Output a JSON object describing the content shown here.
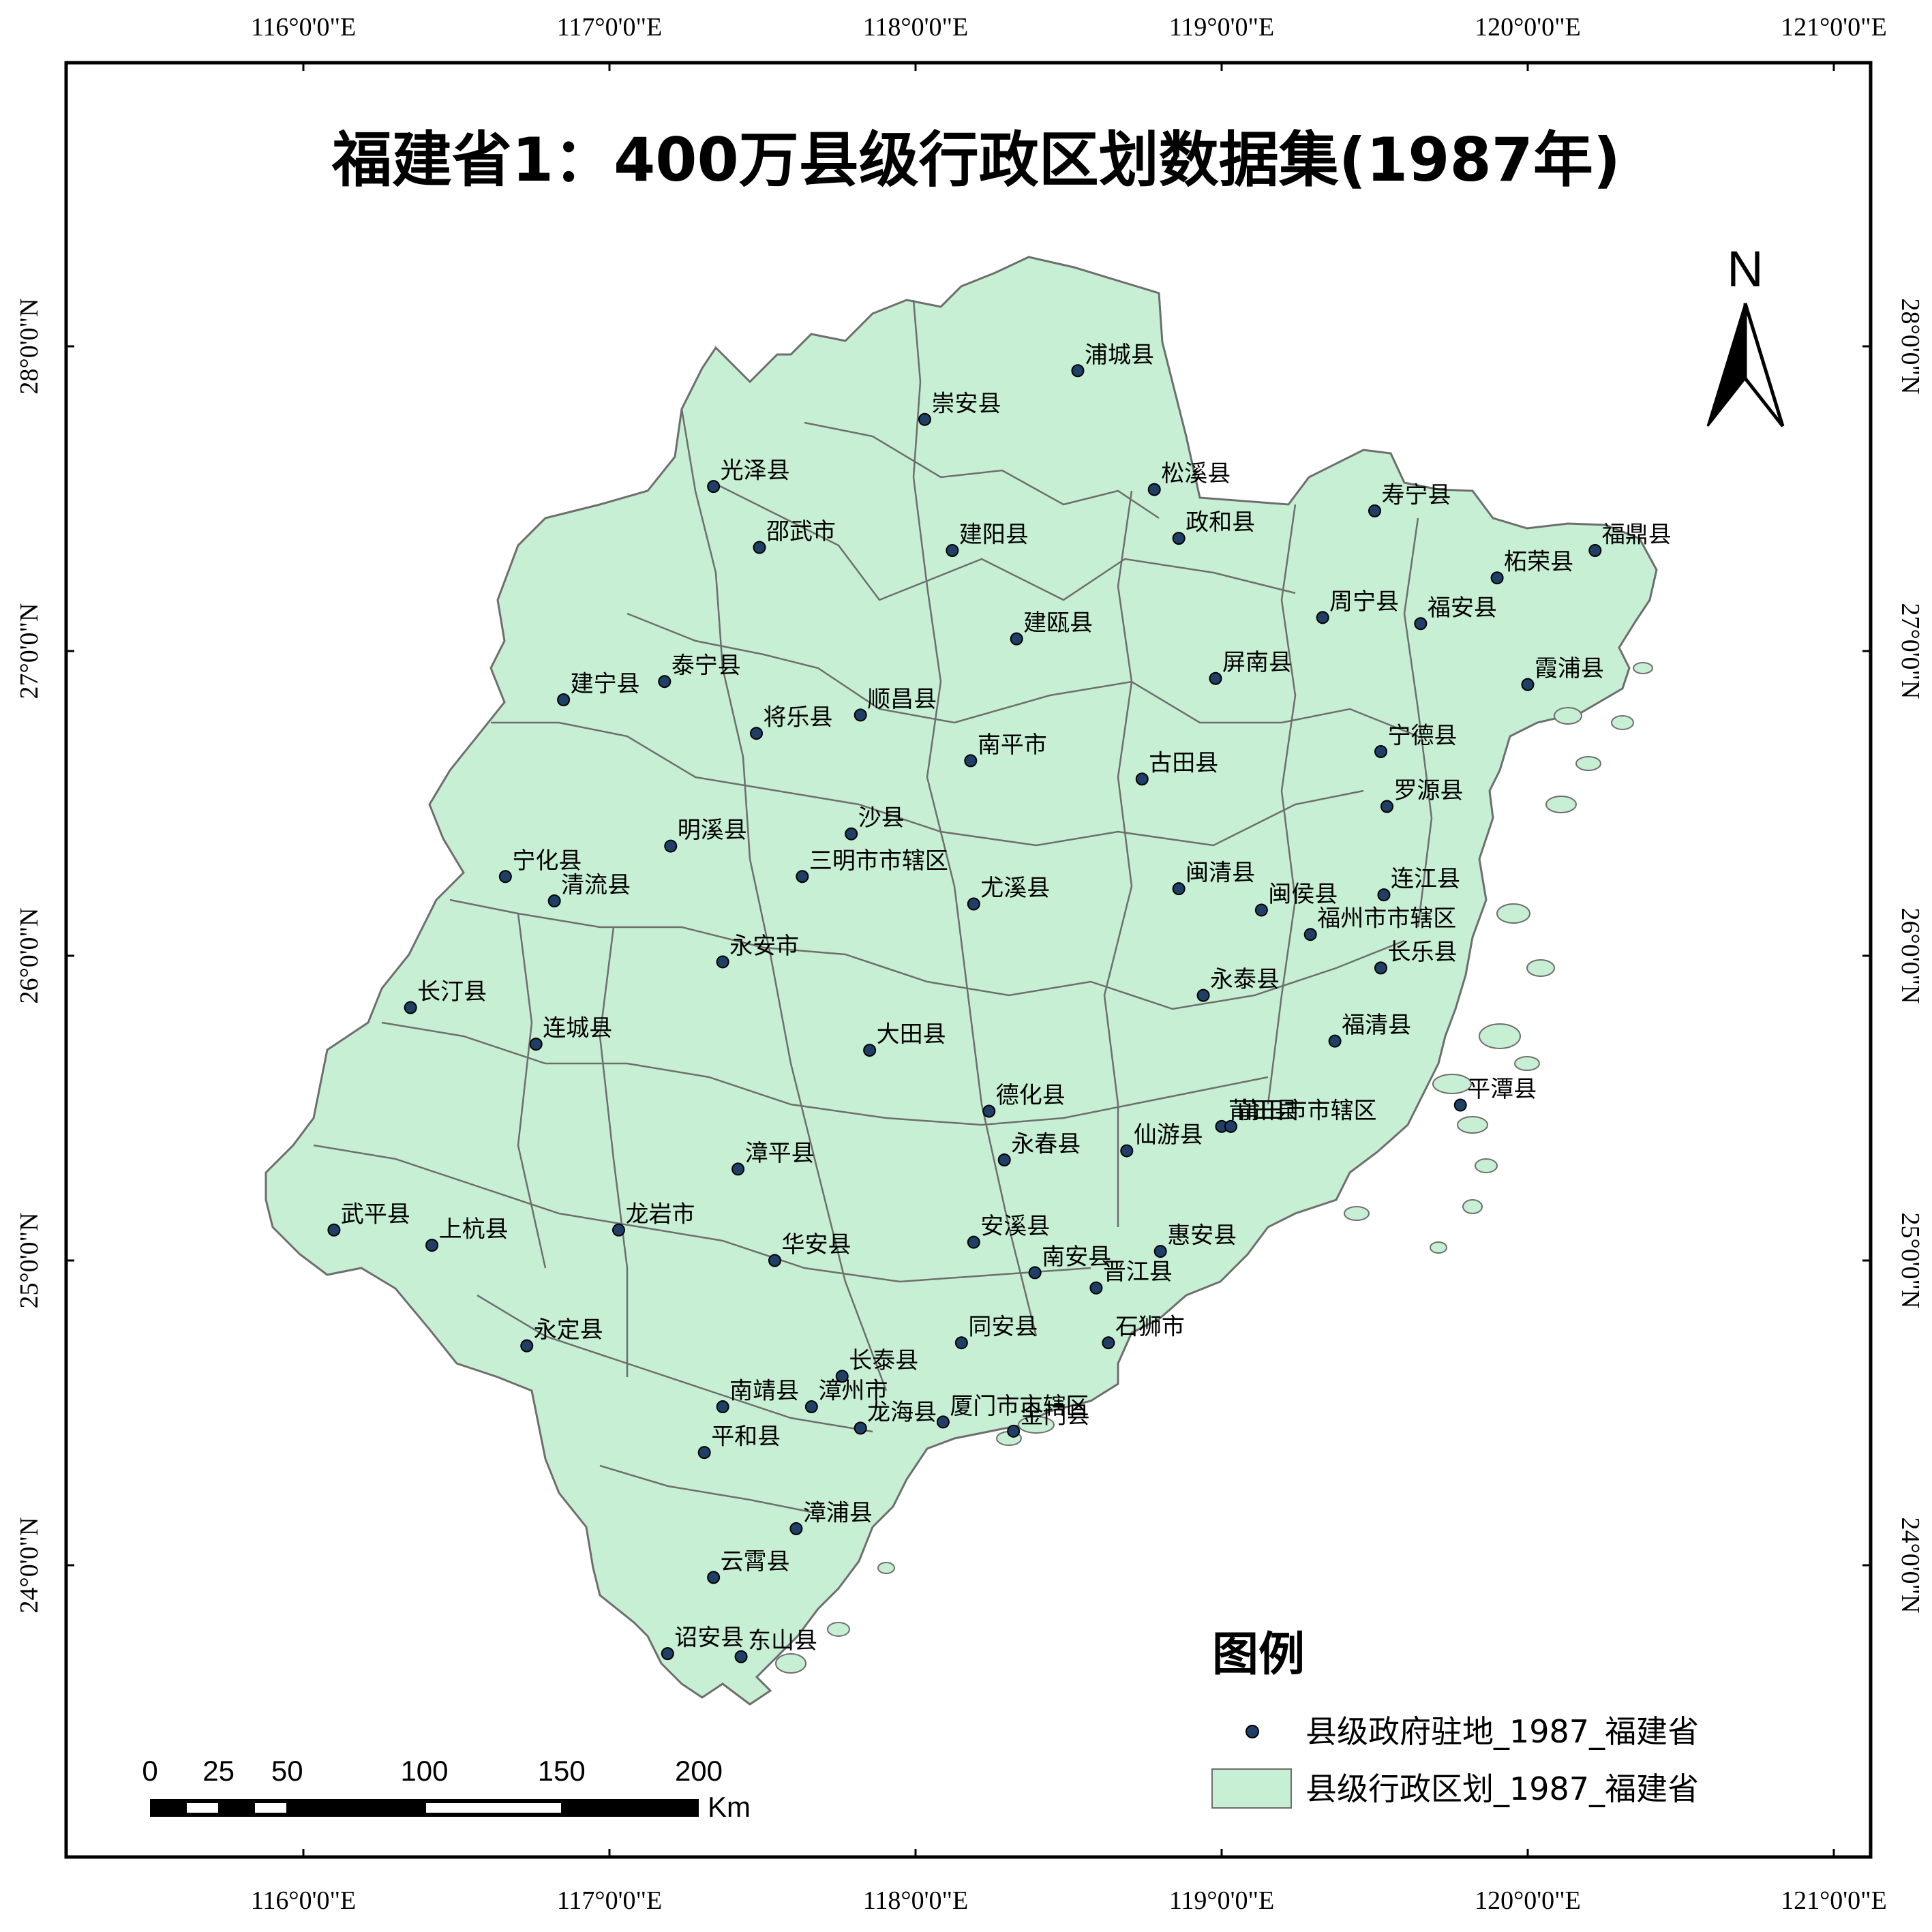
{
  "title": "福建省1：400万县级行政区划数据集(1987年)",
  "north_label": "N",
  "lon_ticks": [
    {
      "lon": 116,
      "label": "116°0'0\"E"
    },
    {
      "lon": 117,
      "label": "117°0'0\"E"
    },
    {
      "lon": 118,
      "label": "118°0'0\"E"
    },
    {
      "lon": 119,
      "label": "119°0'0\"E"
    },
    {
      "lon": 120,
      "label": "120°0'0\"E"
    },
    {
      "lon": 121,
      "label": "121°0'0\"E"
    }
  ],
  "lat_ticks": [
    {
      "lat": 28,
      "label": "28°0'0\"N"
    },
    {
      "lat": 27,
      "label": "27°0'0\"N"
    },
    {
      "lat": 26,
      "label": "26°0'0\"N"
    },
    {
      "lat": 25,
      "label": "25°0'0\"N"
    },
    {
      "lat": 24,
      "label": "24°0'0\"N"
    }
  ],
  "colors": {
    "land_fill": "#c7efd4",
    "boundary": "#6e6e6e",
    "point_fill": "#1f3f67",
    "frame": "#000000"
  },
  "legend": {
    "title": "图例",
    "items": [
      {
        "symbol": "point",
        "label": "县级政府驻地_1987_福建省"
      },
      {
        "symbol": "polygon",
        "label": "县级行政区划_1987_福建省"
      }
    ]
  },
  "scale_bar": {
    "unit": "Km",
    "labels": [
      "0",
      "25",
      "50",
      "100",
      "150",
      "200"
    ]
  },
  "counties": [
    {
      "name": "浦城县",
      "lon": 118.53,
      "lat": 27.92
    },
    {
      "name": "崇安县",
      "lon": 118.03,
      "lat": 27.76
    },
    {
      "name": "光泽县",
      "lon": 117.34,
      "lat": 27.54
    },
    {
      "name": "松溪县",
      "lon": 118.78,
      "lat": 27.53
    },
    {
      "name": "寿宁县",
      "lon": 119.5,
      "lat": 27.46
    },
    {
      "name": "邵武市",
      "lon": 117.49,
      "lat": 27.34
    },
    {
      "name": "建阳县",
      "lon": 118.12,
      "lat": 27.33
    },
    {
      "name": "政和县",
      "lon": 118.86,
      "lat": 27.37
    },
    {
      "name": "福鼎县",
      "lon": 120.22,
      "lat": 27.33
    },
    {
      "name": "柘荣县",
      "lon": 119.9,
      "lat": 27.24
    },
    {
      "name": "周宁县",
      "lon": 119.33,
      "lat": 27.11
    },
    {
      "name": "福安县",
      "lon": 119.65,
      "lat": 27.09
    },
    {
      "name": "建瓯县",
      "lon": 118.33,
      "lat": 27.04
    },
    {
      "name": "泰宁县",
      "lon": 117.18,
      "lat": 26.9
    },
    {
      "name": "建宁县",
      "lon": 116.85,
      "lat": 26.84
    },
    {
      "name": "屏南县",
      "lon": 118.98,
      "lat": 26.91
    },
    {
      "name": "霞浦县",
      "lon": 120.0,
      "lat": 26.89
    },
    {
      "name": "顺昌县",
      "lon": 117.82,
      "lat": 26.79
    },
    {
      "name": "将乐县",
      "lon": 117.48,
      "lat": 26.73
    },
    {
      "name": "南平市",
      "lon": 118.18,
      "lat": 26.64
    },
    {
      "name": "宁德县",
      "lon": 119.52,
      "lat": 26.67
    },
    {
      "name": "古田县",
      "lon": 118.74,
      "lat": 26.58
    },
    {
      "name": "罗源县",
      "lon": 119.54,
      "lat": 26.49
    },
    {
      "name": "沙县",
      "lon": 117.79,
      "lat": 26.4
    },
    {
      "name": "明溪县",
      "lon": 117.2,
      "lat": 26.36
    },
    {
      "name": "三明市市辖区",
      "lon": 117.63,
      "lat": 26.26
    },
    {
      "name": "宁化县",
      "lon": 116.66,
      "lat": 26.26
    },
    {
      "name": "清流县",
      "lon": 116.82,
      "lat": 26.18
    },
    {
      "name": "尤溪县",
      "lon": 118.19,
      "lat": 26.17
    },
    {
      "name": "闽清县",
      "lon": 118.86,
      "lat": 26.22
    },
    {
      "name": "闽侯县",
      "lon": 119.13,
      "lat": 26.15
    },
    {
      "name": "连江县",
      "lon": 119.53,
      "lat": 26.2
    },
    {
      "name": "福州市市辖区",
      "lon": 119.29,
      "lat": 26.07
    },
    {
      "name": "永安市",
      "lon": 117.37,
      "lat": 25.98
    },
    {
      "name": "长乐县",
      "lon": 119.52,
      "lat": 25.96
    },
    {
      "name": "永泰县",
      "lon": 118.94,
      "lat": 25.87
    },
    {
      "name": "长汀县",
      "lon": 116.35,
      "lat": 25.83
    },
    {
      "name": "连城县",
      "lon": 116.76,
      "lat": 25.71
    },
    {
      "name": "福清县",
      "lon": 119.37,
      "lat": 25.72
    },
    {
      "name": "大田县",
      "lon": 117.85,
      "lat": 25.69
    },
    {
      "name": "德化县",
      "lon": 118.24,
      "lat": 25.49
    },
    {
      "name": "平潭县",
      "lon": 119.78,
      "lat": 25.51
    },
    {
      "name": "莆田县",
      "lon": 119.0,
      "lat": 25.44
    },
    {
      "name": "莆田市市辖区",
      "lon": 119.03,
      "lat": 25.44
    },
    {
      "name": "仙游县",
      "lon": 118.69,
      "lat": 25.36
    },
    {
      "name": "永春县",
      "lon": 118.29,
      "lat": 25.33
    },
    {
      "name": "漳平县",
      "lon": 117.42,
      "lat": 25.3
    },
    {
      "name": "武平县",
      "lon": 116.1,
      "lat": 25.1
    },
    {
      "name": "龙岩市",
      "lon": 117.03,
      "lat": 25.1
    },
    {
      "name": "上杭县",
      "lon": 116.42,
      "lat": 25.05
    },
    {
      "name": "安溪县",
      "lon": 118.19,
      "lat": 25.06
    },
    {
      "name": "惠安县",
      "lon": 118.8,
      "lat": 25.03
    },
    {
      "name": "华安县",
      "lon": 117.54,
      "lat": 25.0
    },
    {
      "name": "南安县",
      "lon": 118.39,
      "lat": 24.96
    },
    {
      "name": "晋江县",
      "lon": 118.59,
      "lat": 24.91
    },
    {
      "name": "石狮市",
      "lon": 118.63,
      "lat": 24.73
    },
    {
      "name": "同安县",
      "lon": 118.15,
      "lat": 24.73
    },
    {
      "name": "永定县",
      "lon": 116.73,
      "lat": 24.72
    },
    {
      "name": "长泰县",
      "lon": 117.76,
      "lat": 24.62
    },
    {
      "name": "南靖县",
      "lon": 117.37,
      "lat": 24.52
    },
    {
      "name": "漳州市",
      "lon": 117.66,
      "lat": 24.52
    },
    {
      "name": "龙海县",
      "lon": 117.82,
      "lat": 24.45
    },
    {
      "name": "厦门市市辖区",
      "lon": 118.09,
      "lat": 24.47
    },
    {
      "name": "金门县",
      "lon": 118.32,
      "lat": 24.44
    },
    {
      "name": "平和县",
      "lon": 117.31,
      "lat": 24.37
    },
    {
      "name": "漳浦县",
      "lon": 117.61,
      "lat": 24.12
    },
    {
      "name": "云霄县",
      "lon": 117.34,
      "lat": 23.96
    },
    {
      "name": "诏安县",
      "lon": 117.19,
      "lat": 23.71
    },
    {
      "name": "东山县",
      "lon": 117.43,
      "lat": 23.7
    }
  ]
}
